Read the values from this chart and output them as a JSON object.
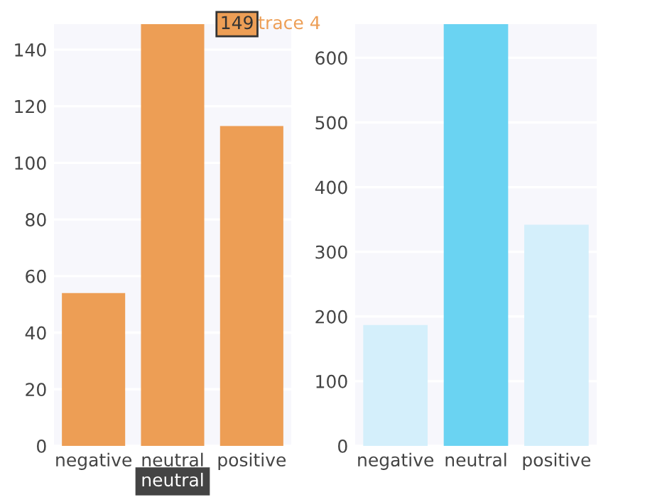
{
  "chart_data": [
    {
      "type": "bar",
      "categories": [
        "negative",
        "neutral",
        "positive"
      ],
      "values": [
        54,
        149,
        113
      ],
      "colors": [
        "#ed9e55",
        "#ed9e55",
        "#ed9e55"
      ],
      "ylim": [
        0,
        149
      ],
      "yticks": [
        0,
        20,
        40,
        60,
        80,
        100,
        120,
        140
      ],
      "grid": "y",
      "annotations": [
        {
          "text": "149",
          "x": "neutral",
          "y": 149
        },
        "trace 4",
        {
          "text": "neutral",
          "x": "neutral",
          "y": 0
        }
      ]
    },
    {
      "type": "bar",
      "categories": [
        "negative",
        "neutral",
        "positive"
      ],
      "values": [
        187,
        652,
        342
      ],
      "colors": [
        "#d4effb",
        "#6ad3f2",
        "#d4effb"
      ],
      "ylim": [
        0,
        652
      ],
      "yticks": [
        0,
        100,
        200,
        300,
        400,
        500,
        600
      ],
      "grid": "y"
    }
  ]
}
